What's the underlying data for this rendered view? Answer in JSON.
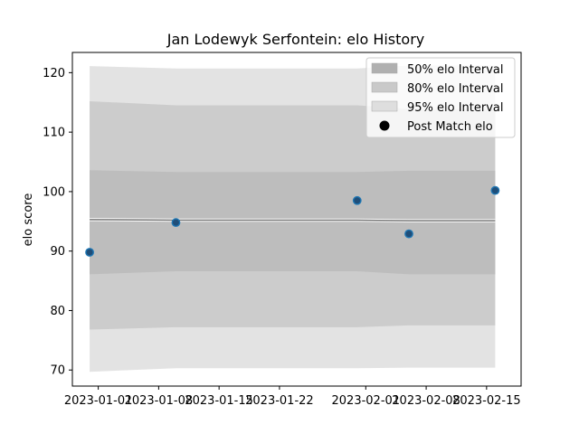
{
  "chart_data": {
    "type": "line",
    "title": "Jan Lodewyk Serfontein: elo History",
    "xlabel": "",
    "ylabel": "elo score",
    "x_ticks": [
      "2023-01-01",
      "2023-01-08",
      "2023-01-15",
      "2023-01-22",
      "2023-02-01",
      "2023-02-08",
      "2023-02-15"
    ],
    "y_ticks": [
      70,
      80,
      90,
      100,
      110,
      120
    ],
    "xlim": [
      "2022-12-29",
      "2023-02-19"
    ],
    "ylim": [
      67.3,
      123.4
    ],
    "mean_line": {
      "dates": [
        "2022-12-31",
        "2023-01-10",
        "2023-01-31",
        "2023-02-06",
        "2023-02-16"
      ],
      "values": [
        95.3,
        95.2,
        95.2,
        95.1,
        95.1
      ]
    },
    "bands": [
      {
        "name": "95% elo Interval",
        "color": "#e3e3e3",
        "dates": [
          "2022-12-31",
          "2023-01-10",
          "2023-01-31",
          "2023-02-06",
          "2023-02-16"
        ],
        "lower": [
          69.7,
          70.3,
          70.3,
          70.4,
          70.4
        ],
        "upper": [
          121.1,
          120.7,
          120.7,
          121.2,
          121.2
        ]
      },
      {
        "name": "80% elo Interval",
        "color": "#cccccc",
        "dates": [
          "2022-12-31",
          "2023-01-10",
          "2023-01-31",
          "2023-02-06",
          "2023-02-16"
        ],
        "lower": [
          76.8,
          77.2,
          77.2,
          77.5,
          77.5
        ],
        "upper": [
          115.2,
          114.5,
          114.5,
          113.9,
          113.9
        ]
      },
      {
        "name": "50% elo Interval",
        "color": "#bdbdbd",
        "dates": [
          "2022-12-31",
          "2023-01-10",
          "2023-01-31",
          "2023-02-06",
          "2023-02-16"
        ],
        "lower": [
          86.1,
          86.6,
          86.6,
          86.1,
          86.1
        ],
        "upper": [
          103.6,
          103.3,
          103.3,
          103.5,
          103.5
        ]
      }
    ],
    "points": {
      "name": "Post Match elo",
      "dates": [
        "2022-12-31",
        "2023-01-10",
        "2023-01-31",
        "2023-02-06",
        "2023-02-16"
      ],
      "values": [
        89.8,
        94.8,
        98.5,
        92.9,
        100.2
      ]
    },
    "legend": {
      "position": "upper right",
      "items": [
        {
          "label": "50% elo Interval",
          "swatch": "band",
          "color": "#b0b0b0"
        },
        {
          "label": "80% elo Interval",
          "swatch": "band",
          "color": "#c9c9c9"
        },
        {
          "label": "95% elo Interval",
          "swatch": "band",
          "color": "#dedede"
        },
        {
          "label": "Post Match elo",
          "swatch": "dot",
          "color": "#000000"
        }
      ]
    },
    "colors": {
      "point_fill": "#1f4e79",
      "point_edge": "#1f77b4",
      "mean_line": "#777777"
    }
  }
}
